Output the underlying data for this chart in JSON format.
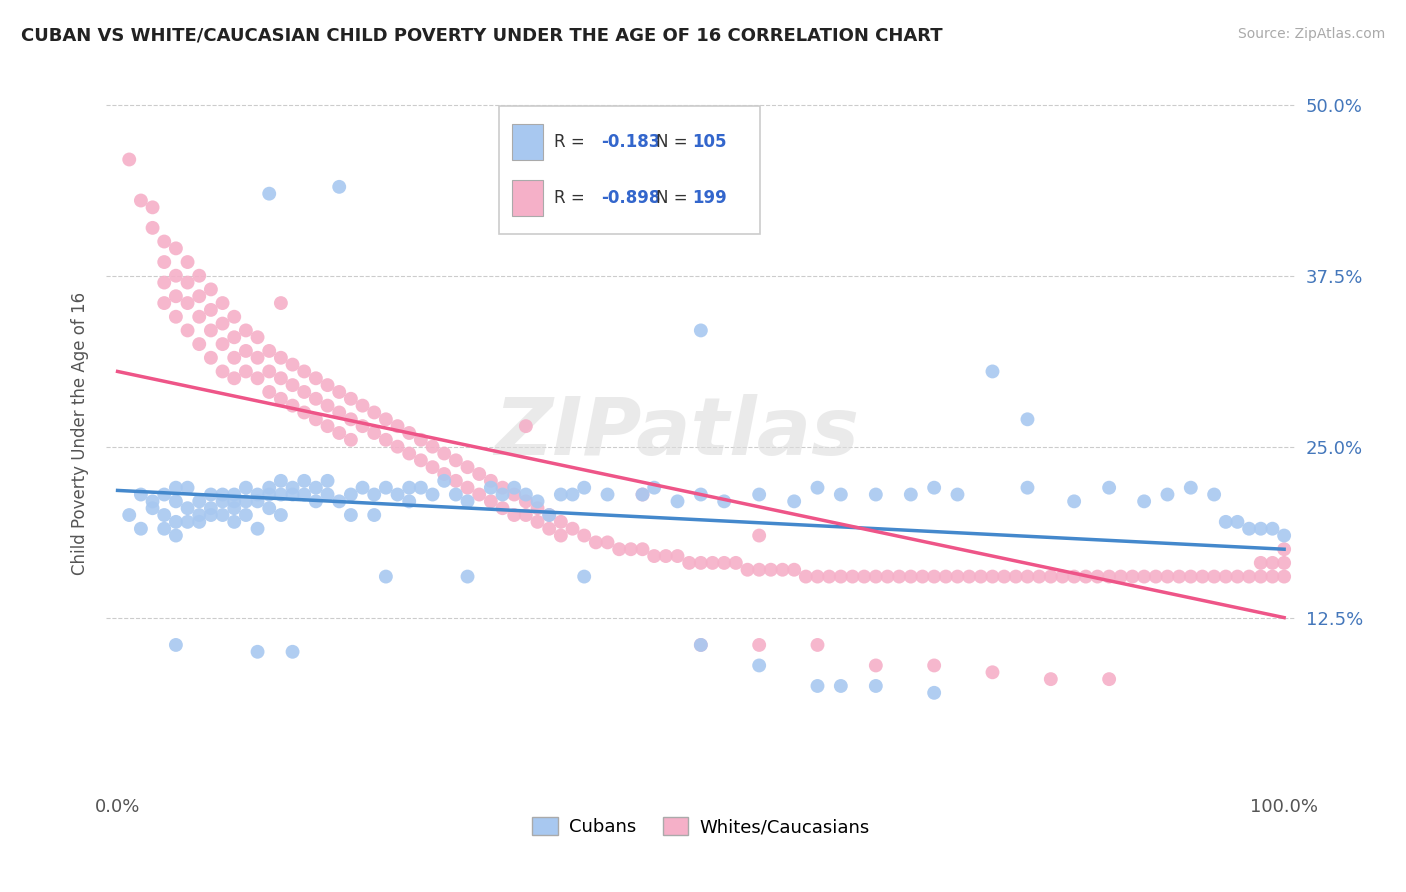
{
  "title": "CUBAN VS WHITE/CAUCASIAN CHILD POVERTY UNDER THE AGE OF 16 CORRELATION CHART",
  "source": "Source: ZipAtlas.com",
  "ylabel": "Child Poverty Under the Age of 16",
  "xlim": [
    -0.01,
    1.01
  ],
  "ylim": [
    0.0,
    0.52
  ],
  "yticks": [
    0.125,
    0.25,
    0.375,
    0.5
  ],
  "ytick_labels": [
    "12.5%",
    "25.0%",
    "37.5%",
    "50.0%"
  ],
  "xticks": [
    0.0,
    1.0
  ],
  "xtick_labels": [
    "0.0%",
    "100.0%"
  ],
  "cubans_R": "-0.183",
  "cubans_N": "105",
  "whites_R": "-0.898",
  "whites_N": "199",
  "cubans_color": "#a8c8f0",
  "whites_color": "#f5b0c8",
  "cubans_line_color": "#4488cc",
  "whites_line_color": "#ee5588",
  "background_color": "#ffffff",
  "grid_color": "#cccccc",
  "watermark": "ZIPatlas",
  "legend_label_cubans": "Cubans",
  "legend_label_whites": "Whites/Caucasians",
  "cubans_scatter": [
    [
      0.01,
      0.2
    ],
    [
      0.02,
      0.19
    ],
    [
      0.02,
      0.215
    ],
    [
      0.03,
      0.205
    ],
    [
      0.03,
      0.21
    ],
    [
      0.04,
      0.2
    ],
    [
      0.04,
      0.215
    ],
    [
      0.04,
      0.19
    ],
    [
      0.05,
      0.21
    ],
    [
      0.05,
      0.195
    ],
    [
      0.05,
      0.185
    ],
    [
      0.05,
      0.22
    ],
    [
      0.06,
      0.205
    ],
    [
      0.06,
      0.195
    ],
    [
      0.06,
      0.22
    ],
    [
      0.07,
      0.21
    ],
    [
      0.07,
      0.2
    ],
    [
      0.07,
      0.195
    ],
    [
      0.08,
      0.215
    ],
    [
      0.08,
      0.205
    ],
    [
      0.08,
      0.2
    ],
    [
      0.09,
      0.21
    ],
    [
      0.09,
      0.2
    ],
    [
      0.09,
      0.215
    ],
    [
      0.1,
      0.215
    ],
    [
      0.1,
      0.21
    ],
    [
      0.1,
      0.205
    ],
    [
      0.1,
      0.195
    ],
    [
      0.11,
      0.22
    ],
    [
      0.11,
      0.21
    ],
    [
      0.11,
      0.2
    ],
    [
      0.12,
      0.215
    ],
    [
      0.12,
      0.21
    ],
    [
      0.12,
      0.19
    ],
    [
      0.13,
      0.22
    ],
    [
      0.13,
      0.215
    ],
    [
      0.13,
      0.205
    ],
    [
      0.14,
      0.225
    ],
    [
      0.14,
      0.215
    ],
    [
      0.14,
      0.2
    ],
    [
      0.15,
      0.22
    ],
    [
      0.15,
      0.215
    ],
    [
      0.16,
      0.225
    ],
    [
      0.16,
      0.215
    ],
    [
      0.17,
      0.22
    ],
    [
      0.17,
      0.21
    ],
    [
      0.18,
      0.225
    ],
    [
      0.18,
      0.215
    ],
    [
      0.19,
      0.21
    ],
    [
      0.2,
      0.215
    ],
    [
      0.2,
      0.2
    ],
    [
      0.21,
      0.22
    ],
    [
      0.22,
      0.215
    ],
    [
      0.22,
      0.2
    ],
    [
      0.23,
      0.22
    ],
    [
      0.24,
      0.215
    ],
    [
      0.25,
      0.22
    ],
    [
      0.25,
      0.21
    ],
    [
      0.26,
      0.22
    ],
    [
      0.27,
      0.215
    ],
    [
      0.28,
      0.225
    ],
    [
      0.29,
      0.215
    ],
    [
      0.3,
      0.21
    ],
    [
      0.32,
      0.22
    ],
    [
      0.33,
      0.215
    ],
    [
      0.34,
      0.22
    ],
    [
      0.35,
      0.215
    ],
    [
      0.36,
      0.21
    ],
    [
      0.37,
      0.2
    ],
    [
      0.38,
      0.215
    ],
    [
      0.39,
      0.215
    ],
    [
      0.4,
      0.22
    ],
    [
      0.42,
      0.215
    ],
    [
      0.45,
      0.215
    ],
    [
      0.46,
      0.22
    ],
    [
      0.48,
      0.21
    ],
    [
      0.5,
      0.215
    ],
    [
      0.52,
      0.21
    ],
    [
      0.55,
      0.215
    ],
    [
      0.58,
      0.21
    ],
    [
      0.6,
      0.22
    ],
    [
      0.62,
      0.215
    ],
    [
      0.65,
      0.215
    ],
    [
      0.68,
      0.215
    ],
    [
      0.7,
      0.22
    ],
    [
      0.72,
      0.215
    ],
    [
      0.78,
      0.22
    ],
    [
      0.82,
      0.21
    ],
    [
      0.85,
      0.22
    ],
    [
      0.88,
      0.21
    ],
    [
      0.9,
      0.215
    ],
    [
      0.92,
      0.22
    ],
    [
      0.94,
      0.215
    ],
    [
      0.95,
      0.195
    ],
    [
      0.96,
      0.195
    ],
    [
      0.97,
      0.19
    ],
    [
      0.98,
      0.19
    ],
    [
      0.99,
      0.19
    ],
    [
      1.0,
      0.185
    ],
    [
      0.19,
      0.44
    ],
    [
      0.13,
      0.435
    ],
    [
      0.5,
      0.335
    ],
    [
      0.75,
      0.305
    ],
    [
      0.78,
      0.27
    ],
    [
      0.05,
      0.105
    ],
    [
      0.12,
      0.1
    ],
    [
      0.15,
      0.1
    ],
    [
      0.23,
      0.155
    ],
    [
      0.3,
      0.155
    ],
    [
      0.4,
      0.155
    ],
    [
      0.5,
      0.105
    ],
    [
      0.55,
      0.09
    ],
    [
      0.6,
      0.075
    ],
    [
      0.62,
      0.075
    ],
    [
      0.65,
      0.075
    ],
    [
      0.7,
      0.07
    ]
  ],
  "whites_scatter": [
    [
      0.01,
      0.46
    ],
    [
      0.02,
      0.43
    ],
    [
      0.03,
      0.425
    ],
    [
      0.03,
      0.41
    ],
    [
      0.04,
      0.4
    ],
    [
      0.04,
      0.385
    ],
    [
      0.04,
      0.37
    ],
    [
      0.05,
      0.395
    ],
    [
      0.05,
      0.375
    ],
    [
      0.05,
      0.36
    ],
    [
      0.05,
      0.345
    ],
    [
      0.06,
      0.385
    ],
    [
      0.06,
      0.37
    ],
    [
      0.06,
      0.355
    ],
    [
      0.06,
      0.335
    ],
    [
      0.07,
      0.375
    ],
    [
      0.07,
      0.36
    ],
    [
      0.07,
      0.345
    ],
    [
      0.07,
      0.325
    ],
    [
      0.08,
      0.365
    ],
    [
      0.08,
      0.35
    ],
    [
      0.08,
      0.335
    ],
    [
      0.08,
      0.315
    ],
    [
      0.09,
      0.355
    ],
    [
      0.09,
      0.34
    ],
    [
      0.09,
      0.325
    ],
    [
      0.09,
      0.305
    ],
    [
      0.1,
      0.345
    ],
    [
      0.1,
      0.33
    ],
    [
      0.1,
      0.315
    ],
    [
      0.1,
      0.3
    ],
    [
      0.11,
      0.335
    ],
    [
      0.11,
      0.32
    ],
    [
      0.11,
      0.305
    ],
    [
      0.12,
      0.33
    ],
    [
      0.12,
      0.315
    ],
    [
      0.12,
      0.3
    ],
    [
      0.13,
      0.32
    ],
    [
      0.13,
      0.305
    ],
    [
      0.13,
      0.29
    ],
    [
      0.14,
      0.315
    ],
    [
      0.14,
      0.3
    ],
    [
      0.14,
      0.285
    ],
    [
      0.15,
      0.31
    ],
    [
      0.15,
      0.295
    ],
    [
      0.15,
      0.28
    ],
    [
      0.16,
      0.305
    ],
    [
      0.16,
      0.29
    ],
    [
      0.16,
      0.275
    ],
    [
      0.17,
      0.3
    ],
    [
      0.17,
      0.285
    ],
    [
      0.17,
      0.27
    ],
    [
      0.18,
      0.295
    ],
    [
      0.18,
      0.28
    ],
    [
      0.18,
      0.265
    ],
    [
      0.19,
      0.29
    ],
    [
      0.19,
      0.275
    ],
    [
      0.19,
      0.26
    ],
    [
      0.2,
      0.285
    ],
    [
      0.2,
      0.27
    ],
    [
      0.2,
      0.255
    ],
    [
      0.21,
      0.28
    ],
    [
      0.21,
      0.265
    ],
    [
      0.22,
      0.275
    ],
    [
      0.22,
      0.26
    ],
    [
      0.23,
      0.27
    ],
    [
      0.23,
      0.255
    ],
    [
      0.24,
      0.265
    ],
    [
      0.24,
      0.25
    ],
    [
      0.25,
      0.26
    ],
    [
      0.25,
      0.245
    ],
    [
      0.26,
      0.255
    ],
    [
      0.26,
      0.24
    ],
    [
      0.27,
      0.25
    ],
    [
      0.27,
      0.235
    ],
    [
      0.28,
      0.245
    ],
    [
      0.28,
      0.23
    ],
    [
      0.29,
      0.24
    ],
    [
      0.29,
      0.225
    ],
    [
      0.3,
      0.235
    ],
    [
      0.3,
      0.22
    ],
    [
      0.31,
      0.23
    ],
    [
      0.31,
      0.215
    ],
    [
      0.32,
      0.225
    ],
    [
      0.32,
      0.21
    ],
    [
      0.33,
      0.22
    ],
    [
      0.33,
      0.205
    ],
    [
      0.34,
      0.215
    ],
    [
      0.34,
      0.2
    ],
    [
      0.35,
      0.21
    ],
    [
      0.35,
      0.2
    ],
    [
      0.36,
      0.205
    ],
    [
      0.36,
      0.195
    ],
    [
      0.37,
      0.2
    ],
    [
      0.37,
      0.19
    ],
    [
      0.38,
      0.195
    ],
    [
      0.38,
      0.185
    ],
    [
      0.39,
      0.19
    ],
    [
      0.4,
      0.185
    ],
    [
      0.41,
      0.18
    ],
    [
      0.42,
      0.18
    ],
    [
      0.43,
      0.175
    ],
    [
      0.44,
      0.175
    ],
    [
      0.45,
      0.175
    ],
    [
      0.46,
      0.17
    ],
    [
      0.47,
      0.17
    ],
    [
      0.48,
      0.17
    ],
    [
      0.49,
      0.165
    ],
    [
      0.5,
      0.165
    ],
    [
      0.51,
      0.165
    ],
    [
      0.52,
      0.165
    ],
    [
      0.53,
      0.165
    ],
    [
      0.54,
      0.16
    ],
    [
      0.55,
      0.16
    ],
    [
      0.56,
      0.16
    ],
    [
      0.57,
      0.16
    ],
    [
      0.58,
      0.16
    ],
    [
      0.59,
      0.155
    ],
    [
      0.6,
      0.155
    ],
    [
      0.61,
      0.155
    ],
    [
      0.62,
      0.155
    ],
    [
      0.63,
      0.155
    ],
    [
      0.64,
      0.155
    ],
    [
      0.65,
      0.155
    ],
    [
      0.66,
      0.155
    ],
    [
      0.67,
      0.155
    ],
    [
      0.68,
      0.155
    ],
    [
      0.69,
      0.155
    ],
    [
      0.7,
      0.155
    ],
    [
      0.71,
      0.155
    ],
    [
      0.72,
      0.155
    ],
    [
      0.73,
      0.155
    ],
    [
      0.74,
      0.155
    ],
    [
      0.75,
      0.155
    ],
    [
      0.76,
      0.155
    ],
    [
      0.77,
      0.155
    ],
    [
      0.78,
      0.155
    ],
    [
      0.79,
      0.155
    ],
    [
      0.8,
      0.155
    ],
    [
      0.81,
      0.155
    ],
    [
      0.82,
      0.155
    ],
    [
      0.83,
      0.155
    ],
    [
      0.84,
      0.155
    ],
    [
      0.85,
      0.155
    ],
    [
      0.86,
      0.155
    ],
    [
      0.87,
      0.155
    ],
    [
      0.88,
      0.155
    ],
    [
      0.89,
      0.155
    ],
    [
      0.9,
      0.155
    ],
    [
      0.91,
      0.155
    ],
    [
      0.92,
      0.155
    ],
    [
      0.93,
      0.155
    ],
    [
      0.94,
      0.155
    ],
    [
      0.95,
      0.155
    ],
    [
      0.96,
      0.155
    ],
    [
      0.97,
      0.155
    ],
    [
      0.98,
      0.155
    ],
    [
      0.98,
      0.165
    ],
    [
      0.99,
      0.155
    ],
    [
      0.99,
      0.165
    ],
    [
      1.0,
      0.155
    ],
    [
      1.0,
      0.165
    ],
    [
      1.0,
      0.175
    ],
    [
      0.5,
      0.105
    ],
    [
      0.55,
      0.105
    ],
    [
      0.6,
      0.105
    ],
    [
      0.65,
      0.09
    ],
    [
      0.7,
      0.09
    ],
    [
      0.75,
      0.085
    ],
    [
      0.8,
      0.08
    ],
    [
      0.85,
      0.08
    ],
    [
      0.04,
      0.355
    ],
    [
      0.14,
      0.355
    ],
    [
      0.35,
      0.265
    ],
    [
      0.45,
      0.215
    ],
    [
      0.55,
      0.185
    ]
  ]
}
